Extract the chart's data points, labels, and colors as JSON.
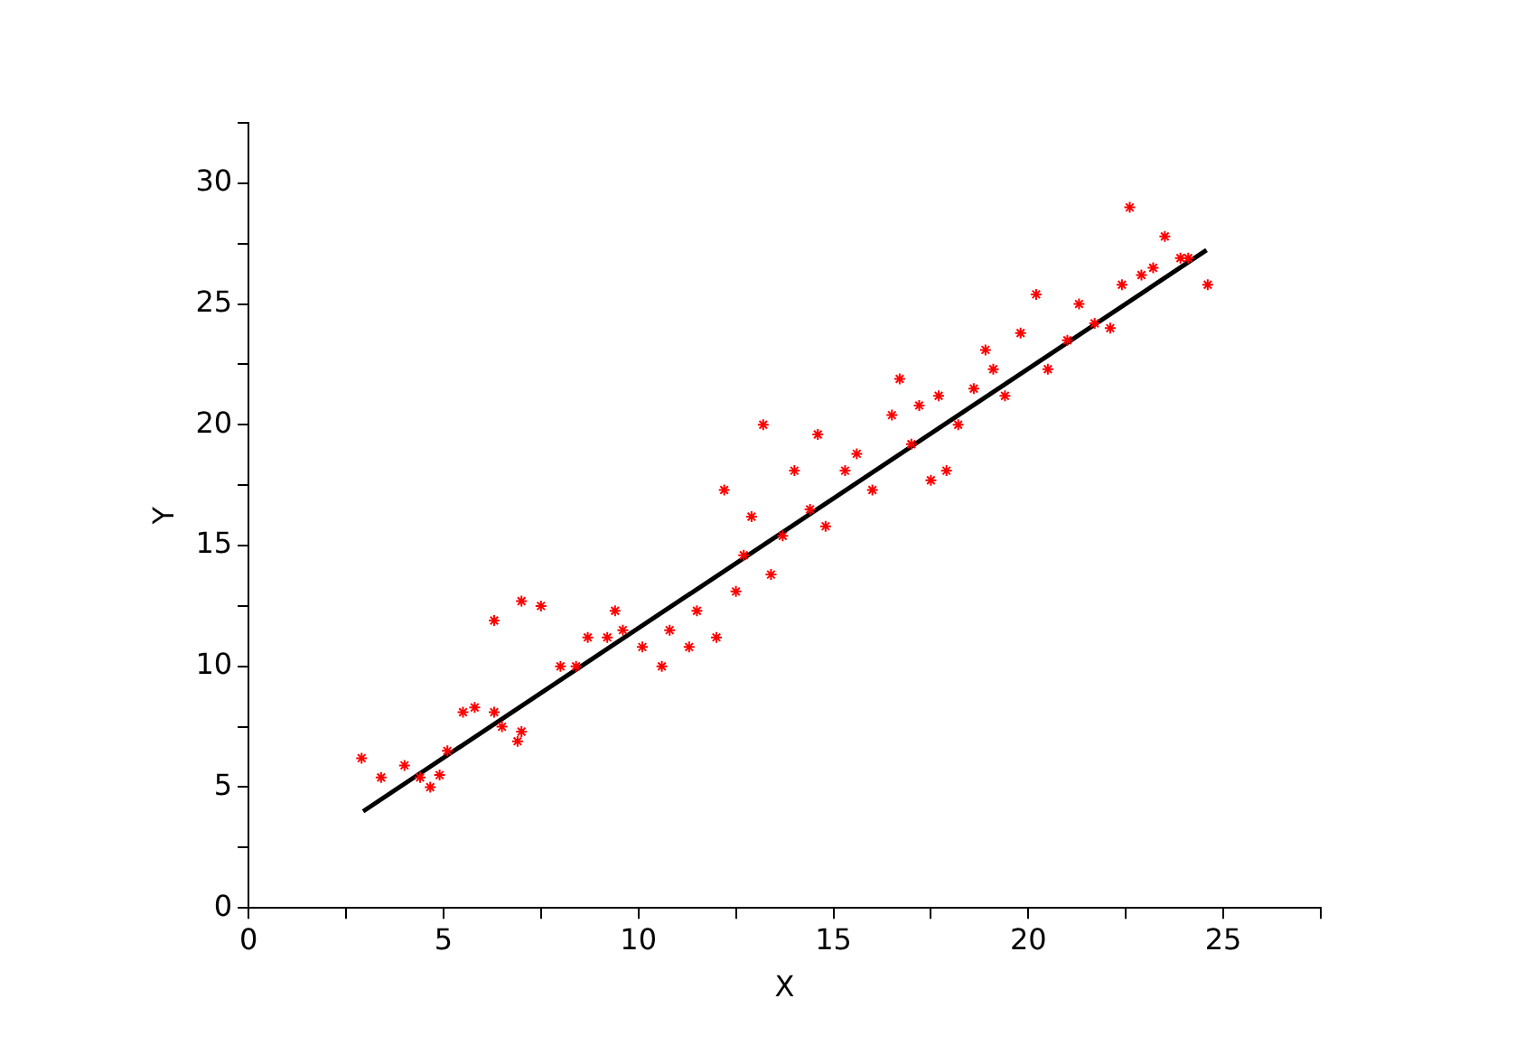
{
  "chart_data": {
    "type": "scatter",
    "xlabel": "X",
    "ylabel": "Y",
    "xlim": [
      0,
      27.5
    ],
    "ylim": [
      0,
      32.5
    ],
    "xticks": [
      0,
      {
        "value": 2.5,
        "label": null
      },
      5,
      {
        "value": 7.5,
        "label": null
      },
      10,
      {
        "value": 12.5,
        "label": null
      },
      15,
      {
        "value": 17.5,
        "label": null
      },
      20,
      {
        "value": 22.5,
        "label": null
      },
      25,
      {
        "value": 27.5,
        "label": null
      }
    ],
    "yticks": [
      0,
      {
        "value": 2.5,
        "label": null
      },
      5,
      {
        "value": 7.5,
        "label": null
      },
      10,
      {
        "value": 12.5,
        "label": null
      },
      15,
      {
        "value": 17.5,
        "label": null
      },
      20,
      {
        "value": 22.5,
        "label": null
      },
      25,
      {
        "value": 27.5,
        "label": null
      },
      30,
      {
        "value": 32.5,
        "label": null
      }
    ],
    "grid": false,
    "legend": false,
    "series": [
      {
        "type": "scatter",
        "color": "#ff0000",
        "marker": "cross",
        "x": [
          2.9,
          3.4,
          4.0,
          4.4,
          4.66,
          4.9,
          5.1,
          5.5,
          5.8,
          6.3,
          6.5,
          6.9,
          7.0,
          6.3,
          7.0,
          7.5,
          8.0,
          8.4,
          8.7,
          9.2,
          9.6,
          9.4,
          10.1,
          10.6,
          10.8,
          11.3,
          11.5,
          12.0,
          12.2,
          12.5,
          12.7,
          12.9,
          13.2,
          13.4,
          13.7,
          14.0,
          14.4,
          14.6,
          14.8,
          15.3,
          15.6,
          16.0,
          16.5,
          16.7,
          17.0,
          17.2,
          17.5,
          17.7,
          17.9,
          18.2,
          18.6,
          18.9,
          19.1,
          19.4,
          19.8,
          20.2,
          20.5,
          21.0,
          21.3,
          21.7,
          22.1,
          22.4,
          22.6,
          22.9,
          23.2,
          23.5,
          23.9,
          24.1,
          24.6
        ],
        "values": [
          6.2,
          5.4,
          5.9,
          5.4,
          5.0,
          5.5,
          6.5,
          8.1,
          8.3,
          8.1,
          7.5,
          6.9,
          7.3,
          11.9,
          12.7,
          12.5,
          10.0,
          10.0,
          11.2,
          11.2,
          11.5,
          12.3,
          10.8,
          10.0,
          11.5,
          10.8,
          12.3,
          11.2,
          17.3,
          13.1,
          14.6,
          16.2,
          20.0,
          13.8,
          15.4,
          18.1,
          16.5,
          19.6,
          15.8,
          18.1,
          18.8,
          17.3,
          20.4,
          21.9,
          19.2,
          20.8,
          17.7,
          21.2,
          18.1,
          20.0,
          21.5,
          23.1,
          22.3,
          21.2,
          23.8,
          25.4,
          22.3,
          23.5,
          25.0,
          24.2,
          24.0,
          25.8,
          29.0,
          26.2,
          26.5,
          27.8,
          26.9,
          26.9,
          25.8
        ]
      },
      {
        "type": "line",
        "color": "#000000",
        "marker": "none",
        "x": [
          2.94,
          24.57
        ],
        "values": [
          4.0,
          27.23
        ]
      }
    ]
  }
}
